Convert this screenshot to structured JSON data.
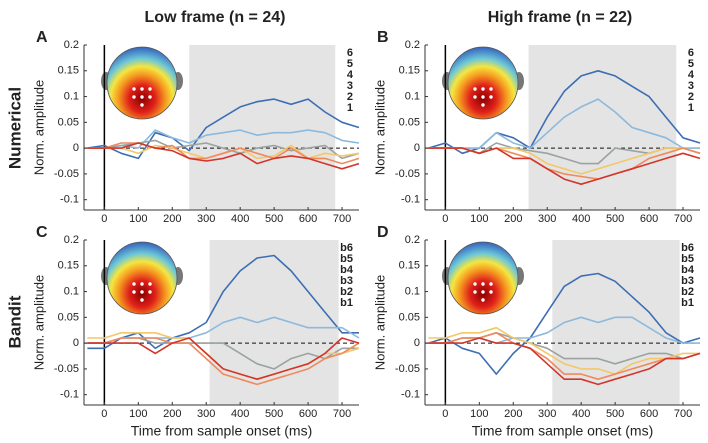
{
  "column_titles": [
    "Low frame (n = 24)",
    "High frame (n = 22)"
  ],
  "row_labels": [
    "Numerical",
    "Bandit"
  ],
  "chart_data": [
    {
      "type": "line",
      "label": "A",
      "ylabel": "Norm. amplitude",
      "x": [
        -50,
        0,
        50,
        100,
        150,
        200,
        250,
        300,
        350,
        400,
        450,
        500,
        550,
        600,
        650,
        700,
        750
      ],
      "xlim": [
        -60,
        750
      ],
      "ylim": [
        -0.12,
        0.2
      ],
      "xticks": [
        0,
        100,
        200,
        300,
        400,
        500,
        600,
        700
      ],
      "yticks": [
        0.2,
        0.15,
        0.1,
        0.05,
        0,
        -0.05,
        -0.1
      ],
      "shade": [
        250,
        680
      ],
      "shade_color": "#e4e4e4",
      "series": [
        {
          "name": "6",
          "color": "#3d6eb4",
          "values": [
            0,
            0.005,
            -0.01,
            -0.02,
            0.03,
            0.02,
            -0.005,
            0.04,
            0.06,
            0.08,
            0.09,
            0.095,
            0.085,
            0.095,
            0.07,
            0.05,
            0.04
          ]
        },
        {
          "name": "5",
          "color": "#8db9dc",
          "values": [
            0,
            0,
            0.005,
            0,
            0.035,
            0.02,
            0.01,
            0.025,
            0.03,
            0.035,
            0.025,
            0.03,
            0.03,
            0.035,
            0.03,
            0.015,
            0.01
          ]
        },
        {
          "name": "4",
          "color": "#9aa39f",
          "values": [
            0,
            0,
            0.005,
            0.01,
            0.015,
            0,
            0.005,
            0.01,
            0,
            -0.01,
            0,
            0.005,
            -0.005,
            0,
            0.005,
            -0.02,
            -0.01
          ]
        },
        {
          "name": "3",
          "color": "#f2c86a",
          "values": [
            0,
            0,
            0,
            -0.01,
            0.005,
            0,
            -0.01,
            -0.02,
            -0.01,
            0,
            -0.02,
            -0.015,
            0.005,
            -0.02,
            -0.01,
            -0.015,
            -0.01
          ]
        },
        {
          "name": "2",
          "color": "#f08a5c",
          "values": [
            0,
            0,
            0.01,
            0.01,
            0,
            0.005,
            -0.02,
            -0.02,
            -0.01,
            0,
            -0.01,
            -0.02,
            0,
            -0.02,
            -0.02,
            -0.03,
            -0.02
          ]
        },
        {
          "name": "1",
          "color": "#d3352a",
          "values": [
            0,
            0,
            0,
            0.01,
            0,
            -0.005,
            -0.02,
            -0.025,
            -0.02,
            -0.01,
            -0.03,
            -0.02,
            -0.015,
            -0.02,
            -0.03,
            -0.04,
            -0.03
          ]
        }
      ]
    },
    {
      "type": "line",
      "label": "B",
      "ylabel": "Norm. amplitude",
      "x": [
        -50,
        0,
        50,
        100,
        150,
        200,
        250,
        300,
        350,
        400,
        450,
        500,
        550,
        600,
        650,
        700,
        750
      ],
      "xlim": [
        -60,
        750
      ],
      "ylim": [
        -0.12,
        0.2
      ],
      "xticks": [
        0,
        100,
        200,
        300,
        400,
        500,
        600,
        700
      ],
      "yticks": [
        0.2,
        0.15,
        0.1,
        0.05,
        0,
        -0.05,
        -0.1
      ],
      "shade": [
        245,
        680
      ],
      "shade_color": "#e4e4e4",
      "series": [
        {
          "name": "6",
          "color": "#3d6eb4",
          "values": [
            0,
            0.01,
            -0.01,
            0,
            0.03,
            0.02,
            0,
            0.06,
            0.11,
            0.14,
            0.15,
            0.14,
            0.12,
            0.1,
            0.06,
            0.02,
            0.01
          ]
        },
        {
          "name": "5",
          "color": "#8db9dc",
          "values": [
            0,
            0,
            0,
            0,
            0.03,
            0.01,
            0,
            0.03,
            0.06,
            0.08,
            0.095,
            0.07,
            0.04,
            0.03,
            0.02,
            0,
            0
          ]
        },
        {
          "name": "4",
          "color": "#9aa39f",
          "values": [
            0,
            0,
            0,
            -0.01,
            0.01,
            0,
            -0.005,
            -0.01,
            -0.02,
            -0.03,
            -0.03,
            0,
            -0.005,
            -0.01,
            0,
            0,
            -0.01
          ]
        },
        {
          "name": "3",
          "color": "#f2c86a",
          "values": [
            0,
            0,
            0,
            -0.01,
            0,
            0,
            -0.01,
            -0.03,
            -0.04,
            -0.05,
            -0.04,
            -0.03,
            -0.02,
            -0.01,
            0,
            0,
            -0.01
          ]
        },
        {
          "name": "2",
          "color": "#f08a5c",
          "values": [
            0,
            0,
            0,
            -0.01,
            0,
            -0.01,
            -0.02,
            -0.04,
            -0.05,
            -0.055,
            -0.06,
            -0.05,
            -0.04,
            -0.02,
            -0.01,
            0,
            -0.01
          ]
        },
        {
          "name": "1",
          "color": "#d3352a",
          "values": [
            0,
            0,
            0,
            -0.01,
            0,
            -0.02,
            -0.02,
            -0.04,
            -0.06,
            -0.07,
            -0.06,
            -0.05,
            -0.04,
            -0.03,
            -0.02,
            -0.01,
            -0.02
          ]
        }
      ]
    },
    {
      "type": "line",
      "label": "C",
      "ylabel": "Norm. amplitude",
      "xlabel": "Time from sample onset (ms)",
      "x": [
        -50,
        0,
        50,
        100,
        150,
        200,
        250,
        300,
        350,
        400,
        450,
        500,
        550,
        600,
        650,
        700,
        750
      ],
      "xlim": [
        -60,
        750
      ],
      "ylim": [
        -0.12,
        0.2
      ],
      "xticks": [
        0,
        100,
        200,
        300,
        400,
        500,
        600,
        700
      ],
      "yticks": [
        0.2,
        0.15,
        0.1,
        0.05,
        0,
        -0.05,
        -0.1
      ],
      "shade": [
        310,
        690
      ],
      "shade_color": "#e4e4e4",
      "series": [
        {
          "name": "b6",
          "color": "#3d6eb4",
          "values": [
            -0.01,
            -0.01,
            0.01,
            0.02,
            -0.01,
            0.01,
            0.02,
            0.04,
            0.1,
            0.14,
            0.165,
            0.17,
            0.14,
            0.1,
            0.06,
            0.02,
            0.02
          ]
        },
        {
          "name": "b5",
          "color": "#8db9dc",
          "values": [
            0,
            0,
            0.01,
            0.01,
            0.01,
            0.01,
            0.01,
            0.02,
            0.04,
            0.05,
            0.04,
            0.05,
            0.04,
            0.03,
            0.03,
            0.03,
            0.01
          ]
        },
        {
          "name": "b4",
          "color": "#9aa39f",
          "values": [
            0,
            0,
            0.01,
            0.01,
            0,
            0,
            0,
            0,
            0,
            -0.02,
            -0.04,
            -0.05,
            -0.03,
            -0.02,
            -0.03,
            -0.01,
            -0.01
          ]
        },
        {
          "name": "b3",
          "color": "#f2c86a",
          "values": [
            0.01,
            0.01,
            0.02,
            0.02,
            0.02,
            0.01,
            0.01,
            -0.02,
            -0.05,
            -0.06,
            -0.07,
            -0.06,
            -0.05,
            -0.04,
            -0.02,
            -0.02,
            -0.01
          ]
        },
        {
          "name": "b2",
          "color": "#f08a5c",
          "values": [
            0,
            0,
            0.01,
            0.01,
            0.01,
            0,
            0,
            -0.03,
            -0.06,
            -0.07,
            -0.08,
            -0.07,
            -0.06,
            -0.05,
            -0.03,
            -0.02,
            0
          ]
        },
        {
          "name": "b1",
          "color": "#d3352a",
          "values": [
            0,
            0,
            0,
            0,
            -0.02,
            0,
            0.01,
            -0.02,
            -0.05,
            -0.06,
            -0.07,
            -0.06,
            -0.05,
            -0.04,
            -0.02,
            0.01,
            0
          ]
        }
      ]
    },
    {
      "type": "line",
      "label": "D",
      "ylabel": "Norm. amplitude",
      "xlabel": "Time from sample onset (ms)",
      "x": [
        -50,
        0,
        50,
        100,
        150,
        200,
        250,
        300,
        350,
        400,
        450,
        500,
        550,
        600,
        650,
        700,
        750
      ],
      "xlim": [
        -60,
        750
      ],
      "ylim": [
        -0.12,
        0.2
      ],
      "xticks": [
        0,
        100,
        200,
        300,
        400,
        500,
        600,
        700
      ],
      "yticks": [
        0.2,
        0.15,
        0.1,
        0.05,
        0,
        -0.05,
        -0.1
      ],
      "shade": [
        315,
        690
      ],
      "shade_color": "#e4e4e4",
      "series": [
        {
          "name": "b6",
          "color": "#3d6eb4",
          "values": [
            0,
            0.01,
            -0.01,
            -0.02,
            -0.06,
            -0.02,
            0.01,
            0.06,
            0.11,
            0.13,
            0.135,
            0.12,
            0.09,
            0.06,
            0.02,
            0,
            0.01
          ]
        },
        {
          "name": "b5",
          "color": "#8db9dc",
          "values": [
            0,
            0,
            0.01,
            0.01,
            0,
            0.01,
            0.01,
            0.02,
            0.04,
            0.05,
            0.04,
            0.05,
            0.05,
            0.03,
            0.01,
            0,
            0
          ]
        },
        {
          "name": "b4",
          "color": "#9aa39f",
          "values": [
            0,
            0,
            0.01,
            0.01,
            0.02,
            0.01,
            0,
            -0.01,
            -0.03,
            -0.03,
            -0.03,
            -0.04,
            -0.03,
            -0.02,
            -0.02,
            -0.03,
            -0.02
          ]
        },
        {
          "name": "b3",
          "color": "#f2c86a",
          "values": [
            0.01,
            0.01,
            0.02,
            0.02,
            0.03,
            0.01,
            0,
            -0.02,
            -0.04,
            -0.05,
            -0.05,
            -0.06,
            -0.04,
            -0.03,
            -0.03,
            -0.02,
            -0.02
          ]
        },
        {
          "name": "b2",
          "color": "#f08a5c",
          "values": [
            0,
            0,
            0.01,
            0.01,
            0.02,
            0,
            -0.01,
            -0.03,
            -0.06,
            -0.06,
            -0.07,
            -0.06,
            -0.05,
            -0.04,
            -0.03,
            -0.03,
            -0.02
          ]
        },
        {
          "name": "b1",
          "color": "#d3352a",
          "values": [
            0,
            0,
            0,
            0.01,
            0,
            0,
            -0.01,
            -0.04,
            -0.07,
            -0.07,
            -0.08,
            -0.07,
            -0.06,
            -0.05,
            -0.03,
            -0.03,
            -0.02
          ]
        }
      ]
    }
  ]
}
